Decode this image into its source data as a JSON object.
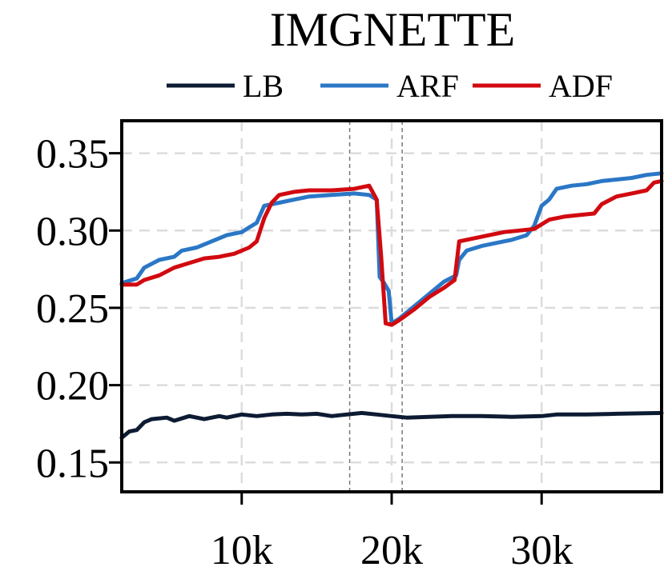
{
  "chart_data": {
    "type": "line",
    "title": "IMGNETTE",
    "xlabel": "",
    "ylabel": "",
    "xlim": [
      2000,
      38000
    ],
    "ylim": [
      0.131,
      0.371
    ],
    "xticks": [
      {
        "value": 10000,
        "label": "10k"
      },
      {
        "value": 20000,
        "label": "20k"
      },
      {
        "value": 30000,
        "label": "30k"
      }
    ],
    "yticks": [
      {
        "value": 0.15,
        "label": "0.15"
      },
      {
        "value": 0.2,
        "label": "0.20"
      },
      {
        "value": 0.25,
        "label": "0.25"
      },
      {
        "value": 0.3,
        "label": "0.30"
      },
      {
        "value": 0.35,
        "label": "0.35"
      }
    ],
    "grid": true,
    "legend_placement": "top",
    "drift_markers": [
      17200,
      20700
    ],
    "series": [
      {
        "name": "LB",
        "color": "#0d1b33",
        "points": [
          [
            2000,
            0.166
          ],
          [
            2500,
            0.17
          ],
          [
            3000,
            0.171
          ],
          [
            3500,
            0.176
          ],
          [
            4000,
            0.178
          ],
          [
            5000,
            0.179
          ],
          [
            5500,
            0.177
          ],
          [
            6500,
            0.18
          ],
          [
            7500,
            0.178
          ],
          [
            8500,
            0.18
          ],
          [
            9000,
            0.179
          ],
          [
            10000,
            0.181
          ],
          [
            11000,
            0.18
          ],
          [
            12000,
            0.181
          ],
          [
            13000,
            0.1815
          ],
          [
            14000,
            0.181
          ],
          [
            15000,
            0.1815
          ],
          [
            16000,
            0.18
          ],
          [
            17000,
            0.181
          ],
          [
            18000,
            0.182
          ],
          [
            19000,
            0.181
          ],
          [
            20000,
            0.18
          ],
          [
            21000,
            0.179
          ],
          [
            22500,
            0.1795
          ],
          [
            24000,
            0.18
          ],
          [
            26000,
            0.18
          ],
          [
            28000,
            0.1795
          ],
          [
            30000,
            0.18
          ],
          [
            31000,
            0.181
          ],
          [
            33000,
            0.181
          ],
          [
            35000,
            0.1815
          ],
          [
            38000,
            0.182
          ]
        ]
      },
      {
        "name": "ARF",
        "color": "#2b77c6",
        "points": [
          [
            2000,
            0.266
          ],
          [
            3000,
            0.269
          ],
          [
            3500,
            0.276
          ],
          [
            4500,
            0.281
          ],
          [
            5500,
            0.283
          ],
          [
            6000,
            0.287
          ],
          [
            7000,
            0.289
          ],
          [
            8000,
            0.293
          ],
          [
            9000,
            0.297
          ],
          [
            10000,
            0.299
          ],
          [
            10500,
            0.302
          ],
          [
            11000,
            0.305
          ],
          [
            11500,
            0.316
          ],
          [
            12500,
            0.318
          ],
          [
            13500,
            0.32
          ],
          [
            14500,
            0.322
          ],
          [
            16000,
            0.323
          ],
          [
            17500,
            0.324
          ],
          [
            18500,
            0.323
          ],
          [
            19000,
            0.32
          ],
          [
            19200,
            0.27
          ],
          [
            19500,
            0.266
          ],
          [
            19800,
            0.261
          ],
          [
            20000,
            0.24
          ],
          [
            20500,
            0.243
          ],
          [
            21500,
            0.251
          ],
          [
            22500,
            0.259
          ],
          [
            23500,
            0.267
          ],
          [
            24300,
            0.271
          ],
          [
            24500,
            0.281
          ],
          [
            25000,
            0.287
          ],
          [
            26000,
            0.29
          ],
          [
            27000,
            0.292
          ],
          [
            28000,
            0.294
          ],
          [
            29000,
            0.297
          ],
          [
            29500,
            0.303
          ],
          [
            30000,
            0.316
          ],
          [
            30500,
            0.32
          ],
          [
            31000,
            0.327
          ],
          [
            32000,
            0.329
          ],
          [
            33000,
            0.33
          ],
          [
            34000,
            0.332
          ],
          [
            35000,
            0.333
          ],
          [
            36000,
            0.334
          ],
          [
            37000,
            0.336
          ],
          [
            38000,
            0.337
          ]
        ]
      },
      {
        "name": "ADF",
        "color": "#d10a10",
        "points": [
          [
            2000,
            0.265
          ],
          [
            3000,
            0.265
          ],
          [
            3500,
            0.268
          ],
          [
            4500,
            0.271
          ],
          [
            5500,
            0.276
          ],
          [
            6500,
            0.279
          ],
          [
            7500,
            0.282
          ],
          [
            8500,
            0.283
          ],
          [
            9500,
            0.285
          ],
          [
            10500,
            0.289
          ],
          [
            11000,
            0.293
          ],
          [
            11500,
            0.308
          ],
          [
            12000,
            0.318
          ],
          [
            12500,
            0.323
          ],
          [
            13500,
            0.325
          ],
          [
            14500,
            0.326
          ],
          [
            16000,
            0.326
          ],
          [
            17500,
            0.327
          ],
          [
            18500,
            0.329
          ],
          [
            19000,
            0.32
          ],
          [
            19300,
            0.283
          ],
          [
            19600,
            0.24
          ],
          [
            20000,
            0.239
          ],
          [
            20500,
            0.242
          ],
          [
            21500,
            0.249
          ],
          [
            22500,
            0.257
          ],
          [
            23500,
            0.263
          ],
          [
            24200,
            0.268
          ],
          [
            24500,
            0.293
          ],
          [
            25500,
            0.295
          ],
          [
            26500,
            0.297
          ],
          [
            27500,
            0.299
          ],
          [
            28500,
            0.3
          ],
          [
            29500,
            0.301
          ],
          [
            30500,
            0.307
          ],
          [
            31500,
            0.309
          ],
          [
            32500,
            0.31
          ],
          [
            33500,
            0.311
          ],
          [
            34000,
            0.317
          ],
          [
            35000,
            0.322
          ],
          [
            36000,
            0.324
          ],
          [
            37000,
            0.326
          ],
          [
            37500,
            0.331
          ],
          [
            38000,
            0.332
          ]
        ]
      }
    ]
  }
}
